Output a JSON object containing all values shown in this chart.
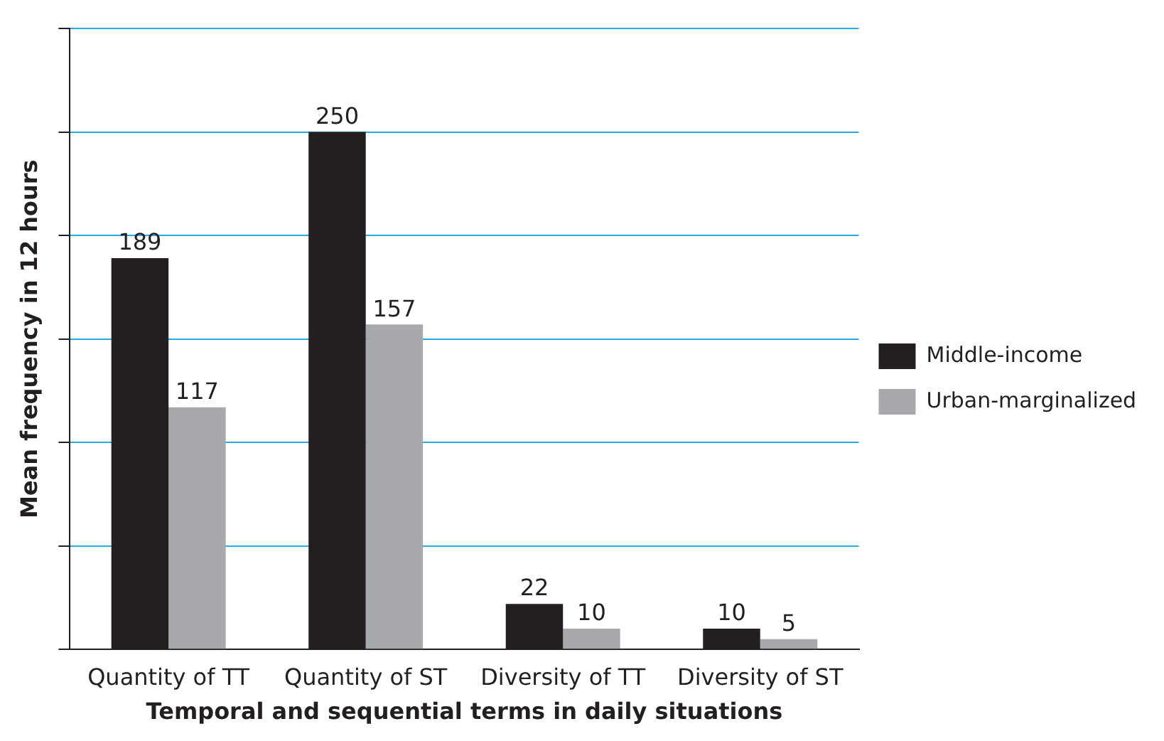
{
  "chart_data": {
    "type": "bar",
    "xlabel": "Temporal and sequential terms in daily situations",
    "ylabel": "Mean frequency in 12 hours",
    "categories": [
      "Quantity of TT",
      "Quantity of ST",
      "Diversity of TT",
      "Diversity of ST"
    ],
    "series": [
      {
        "name": "Middle-income",
        "color": "#231f20",
        "values": [
          189,
          250,
          22,
          10
        ]
      },
      {
        "name": "Urban-marginalized",
        "color": "#a7a9ac",
        "values": [
          117,
          157,
          10,
          5
        ]
      }
    ],
    "ylim": [
      0,
      300
    ],
    "yticks": [
      {
        "value": 0,
        "label": null
      },
      {
        "value": 50,
        "label": null
      },
      {
        "value": 100,
        "label": null
      },
      {
        "value": 150,
        "label": null
      },
      {
        "value": 200,
        "label": null
      },
      {
        "value": 250,
        "label": null
      },
      {
        "value": 300,
        "label": null
      }
    ],
    "grid": "y",
    "legend": "right",
    "data_labels": true
  }
}
